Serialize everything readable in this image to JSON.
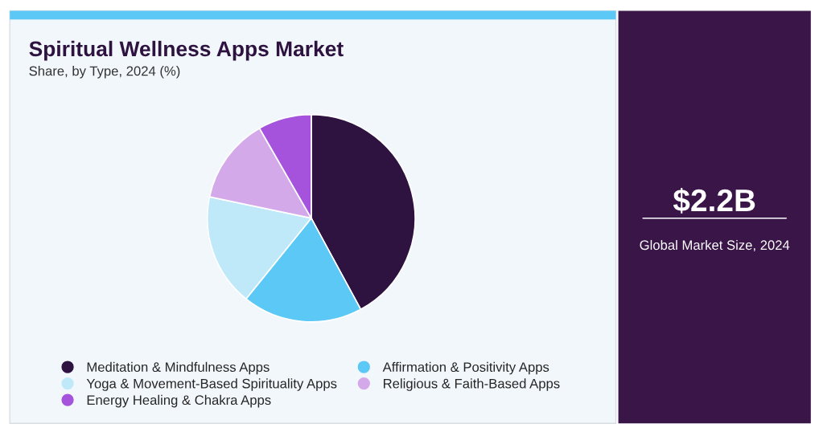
{
  "chart_data": {
    "type": "pie",
    "title": "Spiritual Wellness Apps Market",
    "subtitle": "Share, by Type, 2024 (%)",
    "categories": [
      "Meditation & Mindfulness Apps",
      "Affirmation & Positivity Apps",
      "Yoga & Movement-Based Spirituality Apps",
      "Religious & Faith-Based Apps",
      "Energy Healing & Chakra Apps"
    ],
    "values": [
      42.1,
      18.7,
      17.5,
      13.4,
      8.3
    ],
    "colors": [
      "#2e1240",
      "#5bc8f5",
      "#bfe9f9",
      "#d4a9ea",
      "#a553dc"
    ],
    "legend": "bottom",
    "annotations": [
      "$2.2B",
      "Global Market Size, 2024"
    ]
  }
}
